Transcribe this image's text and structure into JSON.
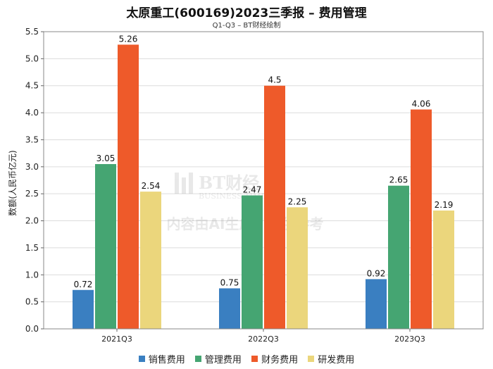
{
  "title": "太原重工(600169)2023三季报 – 费用管理",
  "subtitle": "Q1-Q3 – BT财经绘制",
  "watermark": {
    "logo_text": "BT财经",
    "logo_sub": "BUSINESS TIMES",
    "notice": "内容由AI生成，仅供参考"
  },
  "chart_data": {
    "type": "bar",
    "categories": [
      "2021Q3",
      "2022Q3",
      "2023Q3"
    ],
    "series": [
      {
        "name": "销售费用",
        "color": "#3a7fc1",
        "values": [
          0.72,
          0.75,
          0.92
        ],
        "labels": [
          "0.72",
          "0.75",
          "0.92"
        ]
      },
      {
        "name": "管理费用",
        "color": "#45a572",
        "values": [
          3.05,
          2.47,
          2.65
        ],
        "labels": [
          "3.05",
          "2.47",
          "2.65"
        ]
      },
      {
        "name": "财务费用",
        "color": "#ee5a2a",
        "values": [
          5.26,
          4.5,
          4.06
        ],
        "labels": [
          "5.26",
          "4.5",
          "4.06"
        ]
      },
      {
        "name": "研发费用",
        "color": "#ebd67c",
        "values": [
          2.54,
          2.25,
          2.19
        ],
        "labels": [
          "2.54",
          "2.25",
          "2.19"
        ]
      }
    ],
    "ylabel": "数额(人民币亿元)",
    "xlabel": "",
    "ylim": [
      0,
      5.5
    ],
    "yticks": [
      "0.0",
      "0.5",
      "1.0",
      "1.5",
      "2.0",
      "2.5",
      "3.0",
      "3.5",
      "4.0",
      "4.5",
      "5.0",
      "5.5"
    ],
    "grid": true,
    "legend_position": "bottom"
  }
}
